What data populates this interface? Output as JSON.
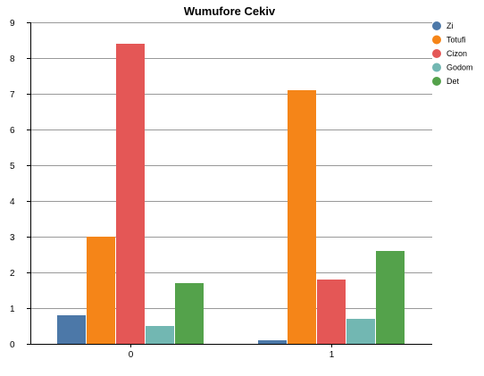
{
  "chart_data": {
    "type": "bar",
    "title": "Wumufore Cekiv",
    "xlabel": "",
    "ylabel": "",
    "categories": [
      "0",
      "1"
    ],
    "series": [
      {
        "name": "Zi",
        "color": "#4c78a8",
        "values": [
          0.8,
          0.1
        ]
      },
      {
        "name": "Totufi",
        "color": "#f58518",
        "values": [
          3.0,
          7.1
        ]
      },
      {
        "name": "Cizon",
        "color": "#e45756",
        "values": [
          8.4,
          1.8
        ]
      },
      {
        "name": "Godom",
        "color": "#72b7b2",
        "values": [
          0.5,
          0.7
        ]
      },
      {
        "name": "Det",
        "color": "#54a24b",
        "values": [
          1.7,
          2.6
        ]
      }
    ],
    "ylim": [
      0,
      9
    ],
    "yticks": [
      "0",
      "1",
      "2",
      "3",
      "4",
      "5",
      "6",
      "7",
      "8",
      "9"
    ],
    "grid": true,
    "legend": "top-right"
  }
}
